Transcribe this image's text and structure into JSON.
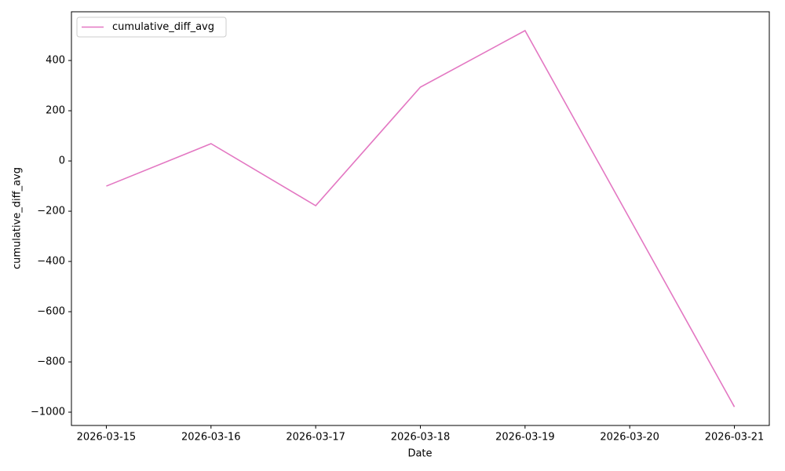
{
  "chart_data": {
    "type": "line",
    "x": [
      "2026-03-15",
      "2026-03-16",
      "2026-03-17",
      "2026-03-18",
      "2026-03-19",
      "2026-03-20",
      "2026-03-21"
    ],
    "series": [
      {
        "name": "cumulative_diff_avg",
        "color": "#e377c2",
        "values": [
          -100,
          69,
          -178,
          294,
          519,
          -230,
          -979
        ]
      }
    ],
    "xlabel": "Date",
    "ylabel": "cumulative_diff_avg",
    "ylim": [
      -1053,
      594
    ],
    "yticks": [
      {
        "value": -1000,
        "label": "−1000"
      },
      {
        "value": -800,
        "label": "−800"
      },
      {
        "value": -600,
        "label": "−600"
      },
      {
        "value": -400,
        "label": "−400"
      },
      {
        "value": -200,
        "label": "−200"
      },
      0,
      200,
      400
    ],
    "legend": "upper left",
    "grid": false
  }
}
